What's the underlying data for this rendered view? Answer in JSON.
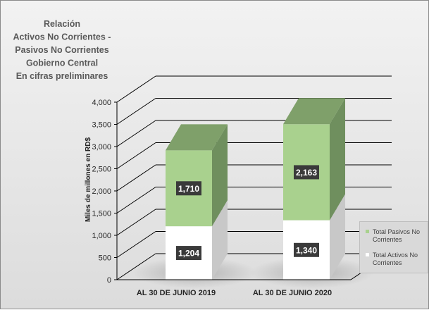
{
  "chart_data": {
    "type": "bar",
    "stacked": true,
    "three_d": true,
    "title_lines": [
      "Relación",
      "Activos No Corrientes -",
      "Pasivos No Corrientes",
      "Gobierno Central",
      "En cifras preliminares"
    ],
    "categories": [
      "AL 30 DE JUNIO  2019",
      "AL 30 DE JUNIO  2020"
    ],
    "series": [
      {
        "name": "Total Activos No Corrientes",
        "values": [
          1204,
          1340
        ],
        "color": "#ffffff",
        "side_color": "#c8c8c8",
        "top_color": "#d9d9d9"
      },
      {
        "name": "Total Pasivos No Corrientes",
        "values": [
          1710,
          2163
        ],
        "color": "#a9d18e",
        "side_color": "#6f8f5e",
        "top_color": "#7fa06a"
      }
    ],
    "data_labels": [
      [
        "1,204",
        "1,340"
      ],
      [
        "1,710",
        "2,163"
      ]
    ],
    "ylabel": "Miles de millones en RD$",
    "xlabel": "",
    "ylim": [
      0,
      4000
    ],
    "yticks": [
      0,
      500,
      1000,
      1500,
      2000,
      2500,
      3000,
      3500,
      4000
    ],
    "ytick_labels": [
      "0",
      "500",
      "1,000",
      "1,500",
      "2,000",
      "2,500",
      "3,000",
      "3,500",
      "4,000"
    ],
    "grid": true,
    "legend_position": "right"
  }
}
